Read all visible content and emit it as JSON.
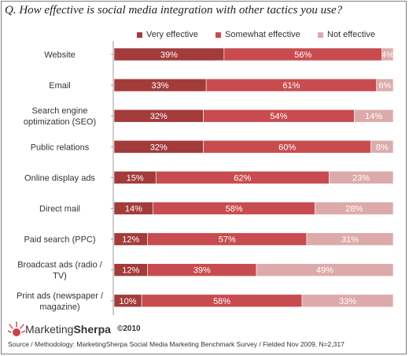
{
  "question": "Q. How effective is social media integration with other tactics you use?",
  "chart_data": {
    "type": "bar",
    "orientation": "horizontal",
    "stacked": true,
    "percent_stacked": true,
    "categories": [
      "Website",
      "Email",
      "Search engine optimization (SEO)",
      "Public relations",
      "Online display ads",
      "Direct mail",
      "Paid search (PPC)",
      "Broadcast ads (radio / TV)",
      "Print ads (newspaper / magazine)"
    ],
    "category_lines": [
      [
        "Website"
      ],
      [
        "Email"
      ],
      [
        "Search engine",
        "optimization (SEO)"
      ],
      [
        "Public relations"
      ],
      [
        "Online display ads"
      ],
      [
        "Direct mail"
      ],
      [
        "Paid search (PPC)"
      ],
      [
        "Broadcast ads (radio /",
        "TV)"
      ],
      [
        "Print ads (newspaper /",
        "magazine)"
      ]
    ],
    "series": [
      {
        "name": "Very effective",
        "color": "#a33b3b",
        "values": [
          39,
          33,
          32,
          32,
          15,
          14,
          12,
          12,
          10
        ]
      },
      {
        "name": "Somewhat effective",
        "color": "#c84c4f",
        "values": [
          56,
          61,
          54,
          60,
          62,
          58,
          57,
          39,
          58
        ]
      },
      {
        "name": "Not effective",
        "color": "#ddaaab",
        "values": [
          4,
          6,
          14,
          8,
          23,
          28,
          31,
          49,
          33
        ]
      }
    ],
    "value_format": "{v}%",
    "legend_position": "top",
    "grid": false
  },
  "footer": {
    "logo_left": "Marketing",
    "logo_right": "Sherpa",
    "copyright": "©2010",
    "source": "Source / Methodology: MarketingSherpa Social Media Marketing Benchmark Survey / Fielded Nov 2009, N=2,317"
  }
}
